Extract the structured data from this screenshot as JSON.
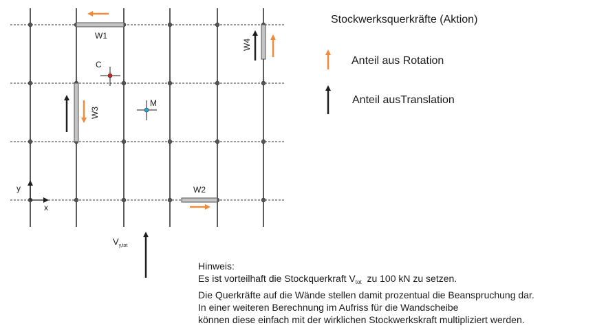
{
  "legend": {
    "title": "Stockwerksquerkräfte (Aktion)",
    "rotation_label": "Anteil aus Rotation",
    "translation_label": "Anteil ausTranslation"
  },
  "plan": {
    "walls": [
      "W1",
      "W2",
      "W3",
      "W4"
    ],
    "points": {
      "stiffness_center": "C",
      "mass_center": "M"
    },
    "axes": {
      "x": "x",
      "y": "y"
    },
    "load": {
      "symbol": "V",
      "subscript": "y,tot"
    }
  },
  "note": {
    "heading": "Hinweis:",
    "line1_before": "Es ist vorteilhaft die Stockquerkraft V",
    "line1_sub": "tot",
    "line1_after": "  zu 100 kN zu setzen.",
    "line2": "Die Querkräfte auf die Wände stellen damit prozentual die Beanspruchung dar.",
    "line3": "In einer weiteren Berechnung im Aufriss für die Wandscheibe",
    "line4": "können diese einfach mit der wirklichen Stockwerkskraft multipliziert werden."
  },
  "colors": {
    "rotation_arrow": "#f08a3c",
    "translation_arrow": "#1e1e1e",
    "grid": "#333333",
    "wall_fill": "#c4c4c4",
    "point_c": "#d42020",
    "point_m": "#2aa5d8"
  }
}
